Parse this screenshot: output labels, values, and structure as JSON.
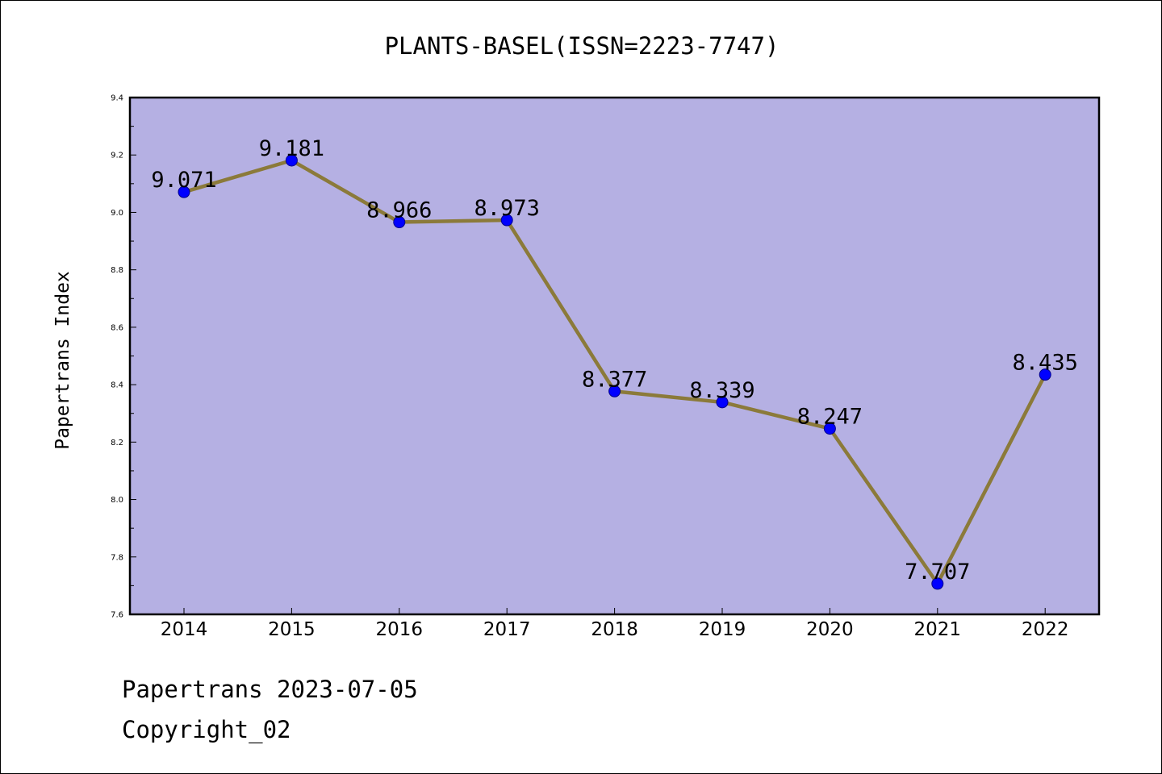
{
  "chart_data": {
    "type": "line",
    "title": "PLANTS-BASEL(ISSN=2223-7747)",
    "xlabel": "",
    "ylabel": "Papertrans Index",
    "categories": [
      "2014",
      "2015",
      "2016",
      "2017",
      "2018",
      "2019",
      "2020",
      "2021",
      "2022"
    ],
    "series": [
      {
        "values": [
          9.071,
          9.181,
          8.966,
          8.973,
          8.377,
          8.339,
          8.247,
          7.707,
          8.435
        ]
      }
    ],
    "data_labels": [
      "9.071",
      "9.181",
      "8.966",
      "8.973",
      "8.377",
      "8.339",
      "8.247",
      "7.707",
      "8.435"
    ],
    "ylim": [
      7.6,
      9.4
    ],
    "yticks": [
      "7.6",
      "7.8",
      "8.0",
      "8.2",
      "8.4",
      "8.6",
      "8.8",
      "9.0",
      "9.2",
      "9.4"
    ],
    "grid": false,
    "colors": {
      "plot_background": "#b5b0e3",
      "line": "#8b7a3a",
      "marker": "#0000ff"
    }
  },
  "footer": {
    "line1": "Papertrans 2023-07-05",
    "line2": "Copyright_02"
  }
}
